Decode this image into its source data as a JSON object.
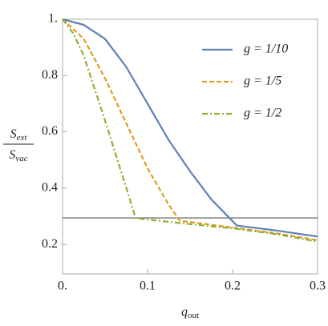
{
  "chart_data": {
    "type": "line",
    "x_label": {
      "symbol": "q",
      "subscript": "out"
    },
    "y_label": {
      "numerator": {
        "symbol": "S",
        "subscript": "ext"
      },
      "denominator": {
        "symbol": "S",
        "subscript": "vac"
      }
    },
    "xlim": [
      0,
      0.3
    ],
    "ylim": [
      0.095,
      1.0
    ],
    "xticks": [
      {
        "value": 0,
        "label": "0."
      },
      0.1,
      0.2,
      0.3
    ],
    "yticks": [
      0.2,
      0.4,
      0.6,
      0.8,
      {
        "value": 1,
        "label": "1."
      }
    ],
    "reference_line": {
      "value": 0.294,
      "color": "#555555"
    },
    "legend": "top-right",
    "series": [
      {
        "name": "g = 1/10",
        "color": "#5e81b5",
        "style": "solid",
        "x": [
          0,
          0.025,
          0.05,
          0.075,
          0.1,
          0.125,
          0.15,
          0.175,
          0.205,
          0.25,
          0.3
        ],
        "values": [
          1,
          0.98,
          0.93,
          0.83,
          0.7,
          0.57,
          0.46,
          0.36,
          0.267,
          0.25,
          0.228
        ]
      },
      {
        "name": "g = 1/5",
        "color": "#e19c24",
        "style": "dashed",
        "x": [
          0,
          0.025,
          0.05,
          0.075,
          0.1,
          0.125,
          0.138,
          0.2,
          0.25,
          0.3
        ],
        "values": [
          1,
          0.93,
          0.79,
          0.63,
          0.47,
          0.34,
          0.284,
          0.26,
          0.24,
          0.215
        ]
      },
      {
        "name": "g = 1/2",
        "color": "#8fb032",
        "style": "dashdot",
        "x": [
          0,
          0.0125,
          0.025,
          0.05,
          0.075,
          0.086,
          0.15,
          0.2,
          0.25,
          0.3
        ],
        "values": [
          1,
          0.95,
          0.87,
          0.64,
          0.4,
          0.293,
          0.272,
          0.257,
          0.237,
          0.21
        ]
      }
    ]
  }
}
